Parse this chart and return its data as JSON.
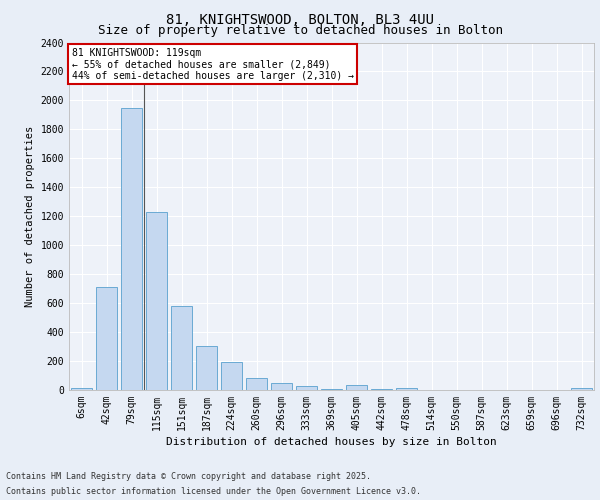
{
  "title1": "81, KNIGHTSWOOD, BOLTON, BL3 4UU",
  "title2": "Size of property relative to detached houses in Bolton",
  "xlabel": "Distribution of detached houses by size in Bolton",
  "ylabel": "Number of detached properties",
  "categories": [
    "6sqm",
    "42sqm",
    "79sqm",
    "115sqm",
    "151sqm",
    "187sqm",
    "224sqm",
    "260sqm",
    "296sqm",
    "333sqm",
    "369sqm",
    "405sqm",
    "442sqm",
    "478sqm",
    "514sqm",
    "550sqm",
    "587sqm",
    "623sqm",
    "659sqm",
    "696sqm",
    "732sqm"
  ],
  "values": [
    15,
    710,
    1950,
    1230,
    580,
    305,
    195,
    85,
    48,
    30,
    5,
    35,
    5,
    15,
    0,
    0,
    0,
    0,
    0,
    0,
    15
  ],
  "bar_color": "#c5d8f0",
  "bar_edge_color": "#6aaad4",
  "annotation_text_line1": "81 KNIGHTSWOOD: 119sqm",
  "annotation_text_line2": "← 55% of detached houses are smaller (2,849)",
  "annotation_text_line3": "44% of semi-detached houses are larger (2,310) →",
  "annotation_box_color": "#ffffff",
  "annotation_box_edge_color": "#cc0000",
  "ylim": [
    0,
    2400
  ],
  "yticks": [
    0,
    200,
    400,
    600,
    800,
    1000,
    1200,
    1400,
    1600,
    1800,
    2000,
    2200,
    2400
  ],
  "footer_line1": "Contains HM Land Registry data © Crown copyright and database right 2025.",
  "footer_line2": "Contains public sector information licensed under the Open Government Licence v3.0.",
  "bg_color": "#e8eef7",
  "plot_bg_color": "#eef2f9",
  "title1_fontsize": 10,
  "title2_fontsize": 9,
  "tick_fontsize": 7,
  "ylabel_fontsize": 7.5,
  "xlabel_fontsize": 8,
  "annotation_fontsize": 7,
  "footer_fontsize": 6
}
